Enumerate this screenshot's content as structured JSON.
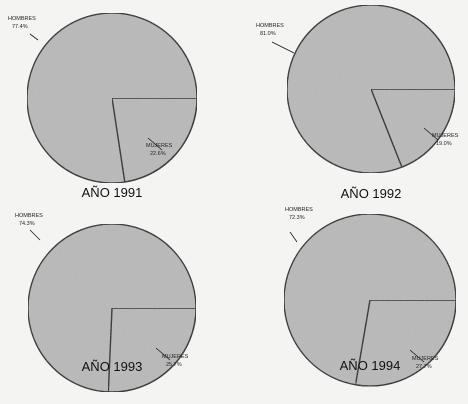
{
  "chart_data": [
    {
      "type": "pie",
      "title": "AÑO 1991",
      "categories": [
        "HOMBRES",
        "MUJERES"
      ],
      "values": [
        77.4,
        22.6
      ],
      "value_labels": [
        "77.4%",
        "22.6%"
      ]
    },
    {
      "type": "pie",
      "title": "AÑO 1992",
      "categories": [
        "HOMBRES",
        "MUJERES"
      ],
      "values": [
        81.0,
        19.0
      ],
      "value_labels": [
        "81.0%",
        "19.0%"
      ]
    },
    {
      "type": "pie",
      "title": "AÑO 1993",
      "categories": [
        "HOMBRES",
        "MUJERES"
      ],
      "values": [
        74.3,
        25.7
      ],
      "value_labels": [
        "74.3%",
        "25.7%"
      ]
    },
    {
      "type": "pie",
      "title": "AÑO 1994",
      "categories": [
        "HOMBRES",
        "MUJERES"
      ],
      "values": [
        72.3,
        27.7
      ],
      "value_labels": [
        "72.3%",
        "27.7%"
      ]
    }
  ],
  "colors": {
    "fill": "#b9b9b9",
    "stroke": "#1a1a1a"
  }
}
